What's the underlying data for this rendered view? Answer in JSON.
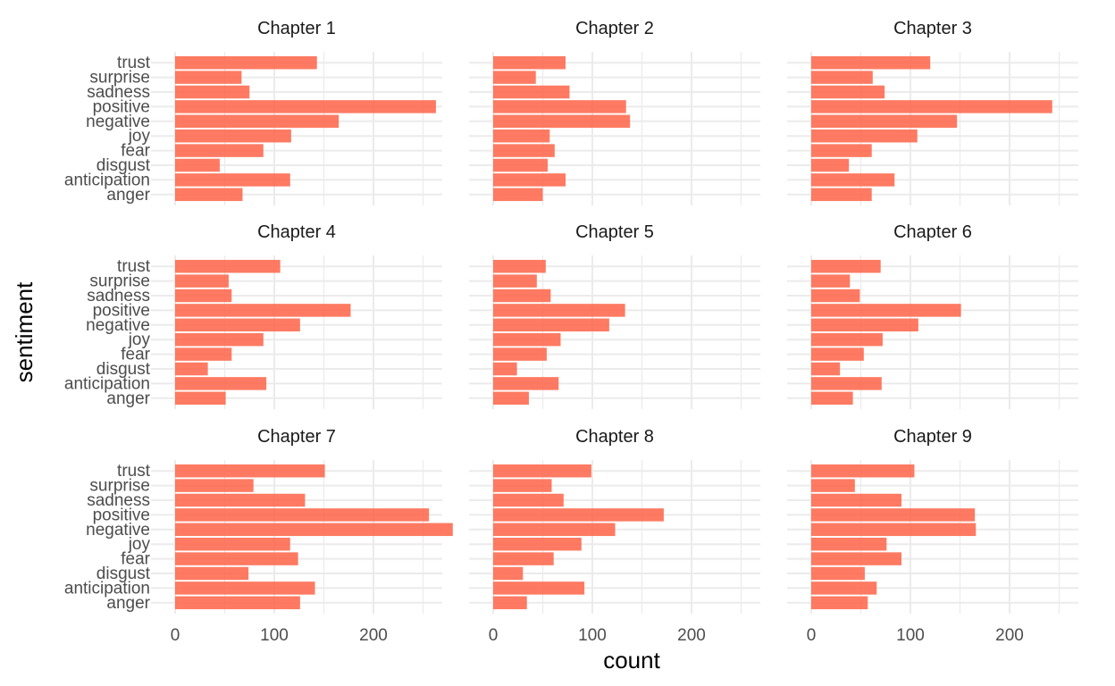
{
  "chart_data": {
    "type": "bar",
    "orientation": "horizontal",
    "facet_layout": "3x3",
    "xlabel": "count",
    "ylabel": "sentiment",
    "xlim": [
      0,
      295
    ],
    "x_ticks": [
      0,
      100,
      200
    ],
    "grid": true,
    "bar_color": "#FF6347",
    "bar_opacity": 0.85,
    "categories": [
      "trust",
      "surprise",
      "sadness",
      "positive",
      "negative",
      "joy",
      "fear",
      "disgust",
      "anticipation",
      "anger"
    ],
    "panels": [
      {
        "title": "Chapter 1",
        "values": [
          143,
          67,
          75,
          263,
          165,
          117,
          89,
          45,
          116,
          68
        ]
      },
      {
        "title": "Chapter 2",
        "values": [
          73,
          43,
          77,
          134,
          138,
          57,
          62,
          55,
          73,
          50
        ]
      },
      {
        "title": "Chapter 3",
        "values": [
          120,
          62,
          74,
          243,
          147,
          107,
          61,
          38,
          84,
          61
        ]
      },
      {
        "title": "Chapter 4",
        "values": [
          106,
          54,
          57,
          177,
          126,
          89,
          57,
          33,
          92,
          51
        ]
      },
      {
        "title": "Chapter 5",
        "values": [
          53,
          44,
          58,
          133,
          117,
          68,
          54,
          24,
          66,
          36
        ]
      },
      {
        "title": "Chapter 6",
        "values": [
          70,
          39,
          49,
          151,
          108,
          72,
          53,
          29,
          71,
          42
        ]
      },
      {
        "title": "Chapter 7",
        "values": [
          151,
          79,
          131,
          256,
          280,
          116,
          124,
          74,
          141,
          126
        ]
      },
      {
        "title": "Chapter 8",
        "values": [
          99,
          59,
          71,
          172,
          123,
          89,
          61,
          30,
          92,
          34
        ]
      },
      {
        "title": "Chapter 9",
        "values": [
          104,
          44,
          91,
          165,
          166,
          76,
          91,
          54,
          66,
          57
        ]
      }
    ]
  }
}
